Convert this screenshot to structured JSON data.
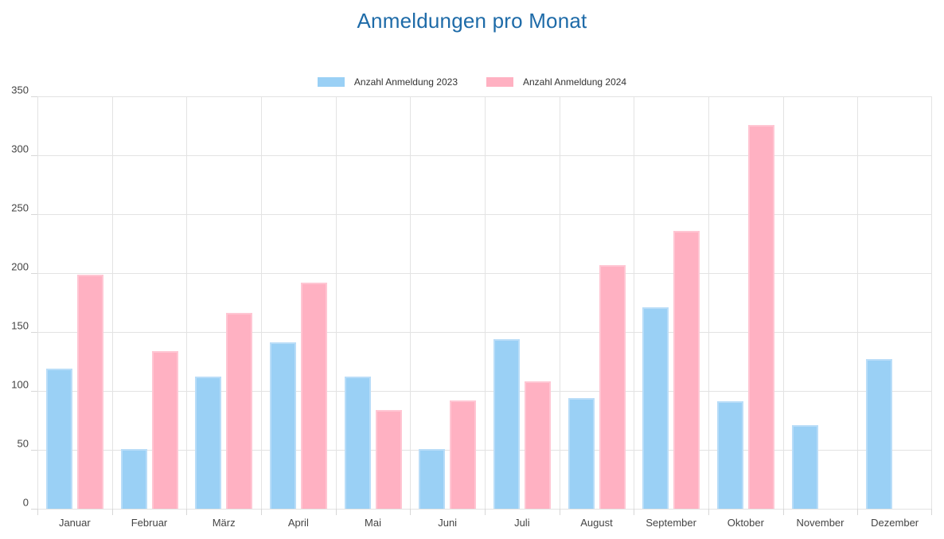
{
  "title": "Anmeldungen pro Monat",
  "legend": {
    "position": "top",
    "items": [
      {
        "label": "Anzahl Anmeldung 2023",
        "color": "#9ad0f5"
      },
      {
        "label": "Anzahl Anmeldung 2024",
        "color": "#ffb1c2"
      }
    ]
  },
  "chart_data": {
    "type": "bar",
    "title": "Anmeldungen pro Monat",
    "categories": [
      "Januar",
      "Februar",
      "März",
      "April",
      "Mai",
      "Juni",
      "Juli",
      "August",
      "September",
      "Oktober",
      "November",
      "Dezember"
    ],
    "series": [
      {
        "name": "Anzahl Anmeldung 2023",
        "color": "#9ad0f5",
        "border_color": "#b9ddf8",
        "values": [
          119,
          51,
          112,
          141,
          112,
          51,
          144,
          94,
          171,
          91,
          71,
          127
        ]
      },
      {
        "name": "Anzahl Anmeldung 2024",
        "color": "#ffb1c2",
        "border_color": "#ffc6d3",
        "values": [
          199,
          134,
          166,
          192,
          84,
          92,
          108,
          207,
          236,
          326,
          0,
          0
        ]
      }
    ],
    "xlabel": "",
    "ylabel": "",
    "ylim": [
      0,
      350
    ],
    "yticks": [
      0,
      50,
      100,
      150,
      200,
      250,
      300,
      350
    ],
    "grid": true,
    "legend_position": "top",
    "colors": {
      "title": "#1e6ba8",
      "axis_label": "#444444",
      "gridline": "#e3e3e3",
      "tick": "#d7d7d7"
    }
  }
}
